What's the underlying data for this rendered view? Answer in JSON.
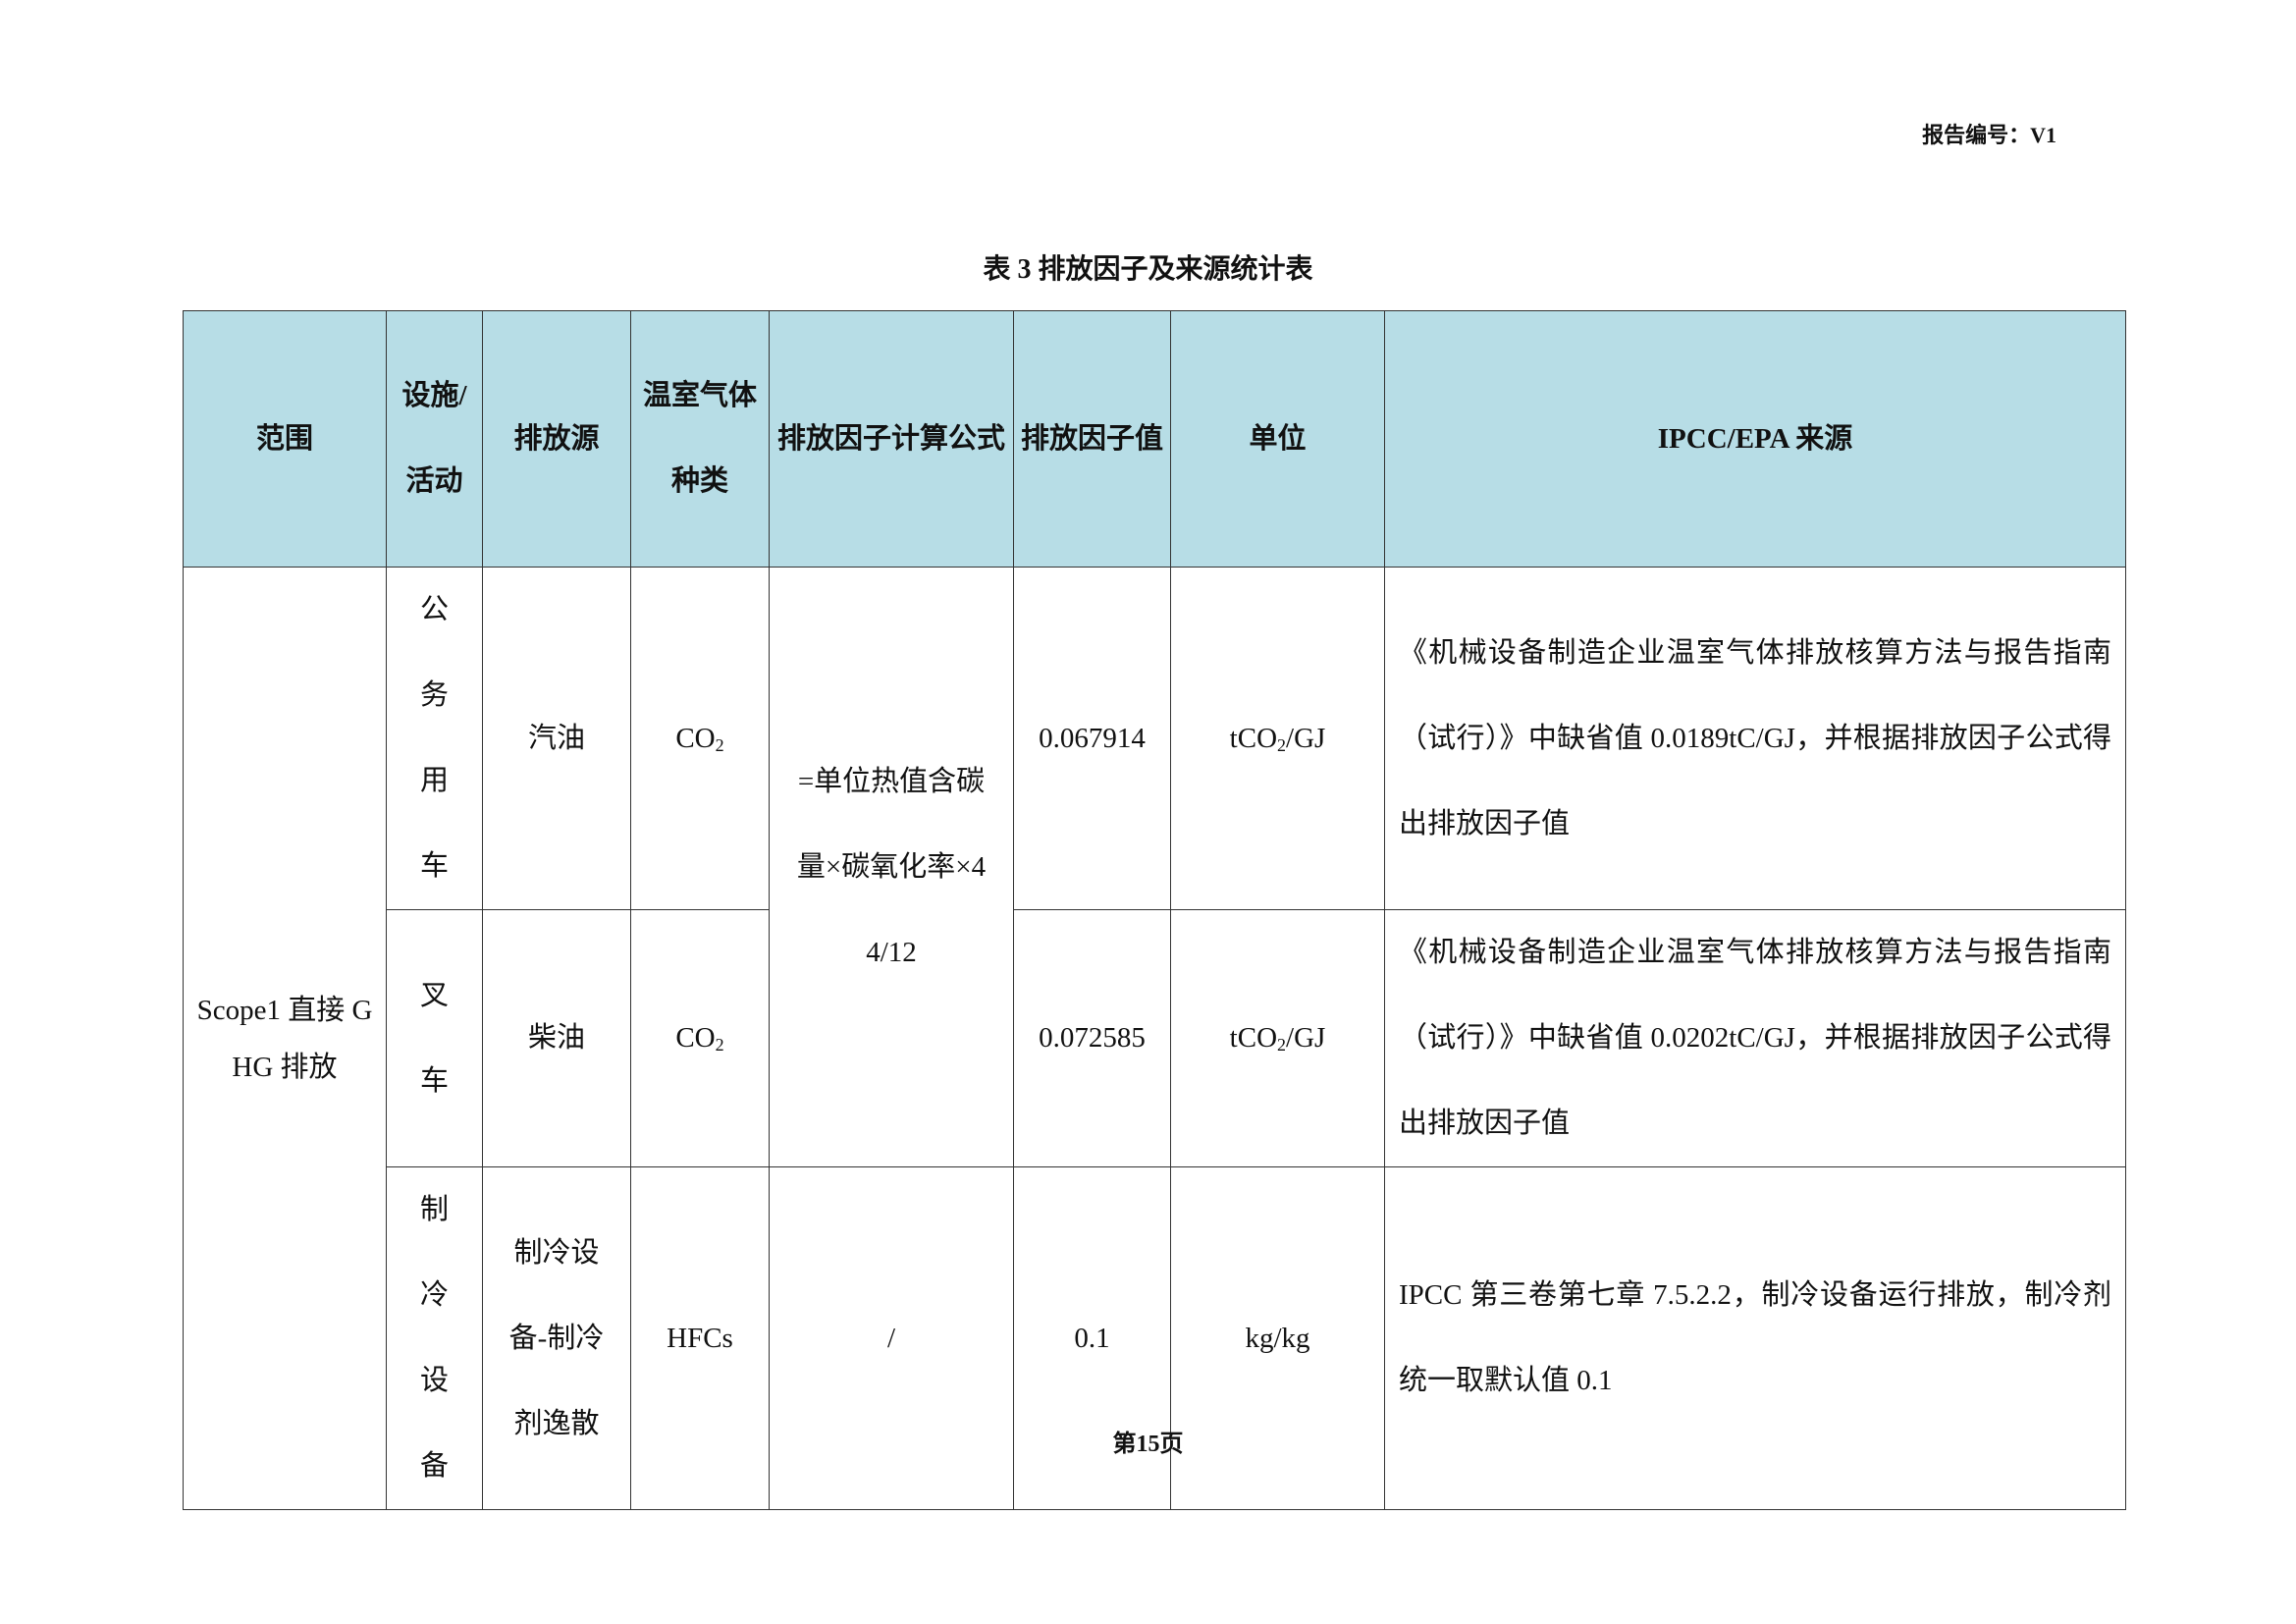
{
  "report_no": "报告编号：V1",
  "caption": "表 3 排放因子及来源统计表",
  "headers": [
    "范围",
    "设施/活动",
    "排放源",
    "温室气体种类",
    "排放因子计算公式",
    "排放因子值",
    "单位",
    "IPCC/EPA 来源"
  ],
  "scope": "Scope1 直接 GHG 排放",
  "formula": "=单位热值含碳量×碳氧化率×44/12",
  "rows": [
    {
      "facility": "公务用车",
      "source": "汽油",
      "gas_base": "CO",
      "gas_sub": "2",
      "value": "0.067914",
      "unit_pre": "tCO",
      "unit_sub": "2",
      "unit_post": "/GJ",
      "ref": "《机械设备制造企业温室气体排放核算方法与报告指南 （试行）》中缺省值 0.0189tC/GJ，并根据排放因子公式得出排放因子值"
    },
    {
      "facility": "叉车",
      "source": "柴油",
      "gas_base": "CO",
      "gas_sub": "2",
      "value": "0.072585",
      "unit_pre": "tCO",
      "unit_sub": "2",
      "unit_post": "/GJ",
      "ref": "《机械设备制造企业温室气体排放核算方法与报告指南 （试行）》中缺省值 0.0202tC/GJ，并根据排放因子公式得出排放因子值"
    },
    {
      "facility": "制冷设备",
      "source": "制冷设备-制冷剂逸散",
      "gas_base": "HFCs",
      "formula": "/",
      "value": "0.1",
      "unit_pre": "kg/kg",
      "ref": "IPCC 第三卷第七章 7.5.2.2，制冷设备运行排放，制冷剂统一取默认值 0.1"
    }
  ],
  "footer": "第15页"
}
